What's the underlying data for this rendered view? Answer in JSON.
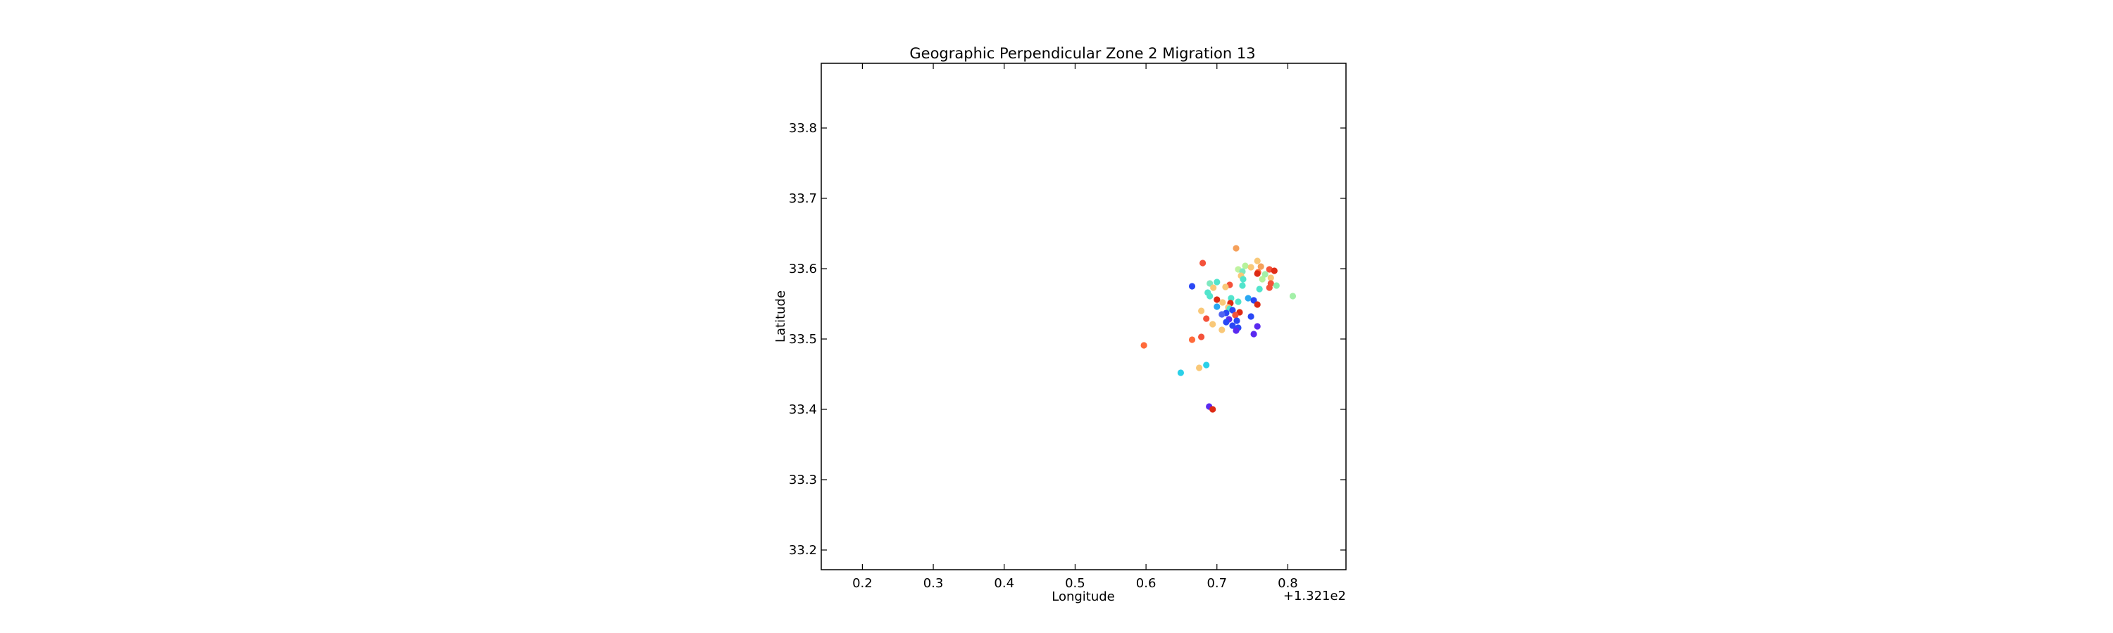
{
  "chart_data": {
    "type": "scatter",
    "title": "Geographic Perpendicular Zone 2 Migration 13",
    "xlabel": "Longitude",
    "ylabel": "Latitude",
    "x_offset_label": "+1.321e2",
    "xlim": [
      0.142,
      0.882
    ],
    "ylim": [
      33.172,
      33.892
    ],
    "xticks": [
      0.2,
      0.3,
      0.4,
      0.5,
      0.6,
      0.7,
      0.8
    ],
    "xtick_labels": [
      "0.2",
      "0.3",
      "0.4",
      "0.5",
      "0.6",
      "0.7",
      "0.8"
    ],
    "yticks": [
      33.2,
      33.3,
      33.4,
      33.5,
      33.6,
      33.7,
      33.8
    ],
    "ytick_labels": [
      "33.2",
      "33.3",
      "33.4",
      "33.5",
      "33.6",
      "33.7",
      "33.8"
    ],
    "grid": false,
    "legend": "none",
    "points": [
      {
        "x": 0.727,
        "y": 33.629,
        "color": "#f5a05a"
      },
      {
        "x": 0.68,
        "y": 33.608,
        "color": "#f4523a"
      },
      {
        "x": 0.757,
        "y": 33.611,
        "color": "#f9c878"
      },
      {
        "x": 0.74,
        "y": 33.604,
        "color": "#b6f29a"
      },
      {
        "x": 0.762,
        "y": 33.603,
        "color": "#f5a05a"
      },
      {
        "x": 0.748,
        "y": 33.602,
        "color": "#f9c878"
      },
      {
        "x": 0.73,
        "y": 33.599,
        "color": "#bff3a0"
      },
      {
        "x": 0.774,
        "y": 33.599,
        "color": "#f4523a"
      },
      {
        "x": 0.781,
        "y": 33.597,
        "color": "#e02c16"
      },
      {
        "x": 0.736,
        "y": 33.596,
        "color": "#7ee8c0"
      },
      {
        "x": 0.758,
        "y": 33.595,
        "color": "#ff6a3a"
      },
      {
        "x": 0.757,
        "y": 33.593,
        "color": "#dd2a14"
      },
      {
        "x": 0.768,
        "y": 33.592,
        "color": "#a3f0a8"
      },
      {
        "x": 0.734,
        "y": 33.59,
        "color": "#f9c878"
      },
      {
        "x": 0.776,
        "y": 33.587,
        "color": "#f9c878"
      },
      {
        "x": 0.737,
        "y": 33.585,
        "color": "#52e4cc"
      },
      {
        "x": 0.764,
        "y": 33.585,
        "color": "#b6f29a"
      },
      {
        "x": 0.7,
        "y": 33.581,
        "color": "#52e4cc"
      },
      {
        "x": 0.69,
        "y": 33.579,
        "color": "#7ee8c0"
      },
      {
        "x": 0.776,
        "y": 33.579,
        "color": "#f4523a"
      },
      {
        "x": 0.718,
        "y": 33.577,
        "color": "#f4523a"
      },
      {
        "x": 0.736,
        "y": 33.576,
        "color": "#52e4cc"
      },
      {
        "x": 0.784,
        "y": 33.576,
        "color": "#8af0b0"
      },
      {
        "x": 0.665,
        "y": 33.575,
        "color": "#2a48f5"
      },
      {
        "x": 0.712,
        "y": 33.574,
        "color": "#f9c878"
      },
      {
        "x": 0.695,
        "y": 33.573,
        "color": "#f9c878"
      },
      {
        "x": 0.774,
        "y": 33.573,
        "color": "#f4523a"
      },
      {
        "x": 0.76,
        "y": 33.571,
        "color": "#52e4cc"
      },
      {
        "x": 0.687,
        "y": 33.566,
        "color": "#52e4cc"
      },
      {
        "x": 0.69,
        "y": 33.561,
        "color": "#52e4cc"
      },
      {
        "x": 0.807,
        "y": 33.561,
        "color": "#a3f0a8"
      },
      {
        "x": 0.72,
        "y": 33.558,
        "color": "#52e4cc"
      },
      {
        "x": 0.744,
        "y": 33.558,
        "color": "#2aa8f2"
      },
      {
        "x": 0.7,
        "y": 33.556,
        "color": "#dd2a14"
      },
      {
        "x": 0.752,
        "y": 33.555,
        "color": "#2a48f5"
      },
      {
        "x": 0.73,
        "y": 33.553,
        "color": "#52e4cc"
      },
      {
        "x": 0.708,
        "y": 33.552,
        "color": "#f9c878"
      },
      {
        "x": 0.719,
        "y": 33.551,
        "color": "#dd2a14"
      },
      {
        "x": 0.757,
        "y": 33.549,
        "color": "#dd2a14"
      },
      {
        "x": 0.7,
        "y": 33.546,
        "color": "#2aa8f2"
      },
      {
        "x": 0.716,
        "y": 33.545,
        "color": "#f9c878"
      },
      {
        "x": 0.718,
        "y": 33.543,
        "color": "#52e4cc"
      },
      {
        "x": 0.722,
        "y": 33.541,
        "color": "#2a48f5"
      },
      {
        "x": 0.678,
        "y": 33.54,
        "color": "#f9c878"
      },
      {
        "x": 0.732,
        "y": 33.538,
        "color": "#dd2a14"
      },
      {
        "x": 0.713,
        "y": 33.537,
        "color": "#2a48f5"
      },
      {
        "x": 0.707,
        "y": 33.535,
        "color": "#5264f2"
      },
      {
        "x": 0.726,
        "y": 33.534,
        "color": "#f4523a"
      },
      {
        "x": 0.748,
        "y": 33.532,
        "color": "#2a48f5"
      },
      {
        "x": 0.685,
        "y": 33.529,
        "color": "#f4523a"
      },
      {
        "x": 0.717,
        "y": 33.528,
        "color": "#5a2af0"
      },
      {
        "x": 0.728,
        "y": 33.526,
        "color": "#2a48f5"
      },
      {
        "x": 0.713,
        "y": 33.524,
        "color": "#2a48f5"
      },
      {
        "x": 0.694,
        "y": 33.521,
        "color": "#f9c878"
      },
      {
        "x": 0.722,
        "y": 33.519,
        "color": "#2a48f5"
      },
      {
        "x": 0.757,
        "y": 33.518,
        "color": "#5a2af0"
      },
      {
        "x": 0.73,
        "y": 33.516,
        "color": "#2a48f5"
      },
      {
        "x": 0.707,
        "y": 33.513,
        "color": "#f9c878"
      },
      {
        "x": 0.727,
        "y": 33.512,
        "color": "#5a2af0"
      },
      {
        "x": 0.752,
        "y": 33.507,
        "color": "#5a2af0"
      },
      {
        "x": 0.678,
        "y": 33.503,
        "color": "#f4523a"
      },
      {
        "x": 0.665,
        "y": 33.499,
        "color": "#ff6a3a"
      },
      {
        "x": 0.597,
        "y": 33.491,
        "color": "#ff6a3a"
      },
      {
        "x": 0.685,
        "y": 33.463,
        "color": "#2ad0e8"
      },
      {
        "x": 0.675,
        "y": 33.459,
        "color": "#f9c878"
      },
      {
        "x": 0.649,
        "y": 33.452,
        "color": "#2ad0e8"
      },
      {
        "x": 0.689,
        "y": 33.404,
        "color": "#5a2af0"
      },
      {
        "x": 0.694,
        "y": 33.4,
        "color": "#dd2a14"
      }
    ]
  }
}
